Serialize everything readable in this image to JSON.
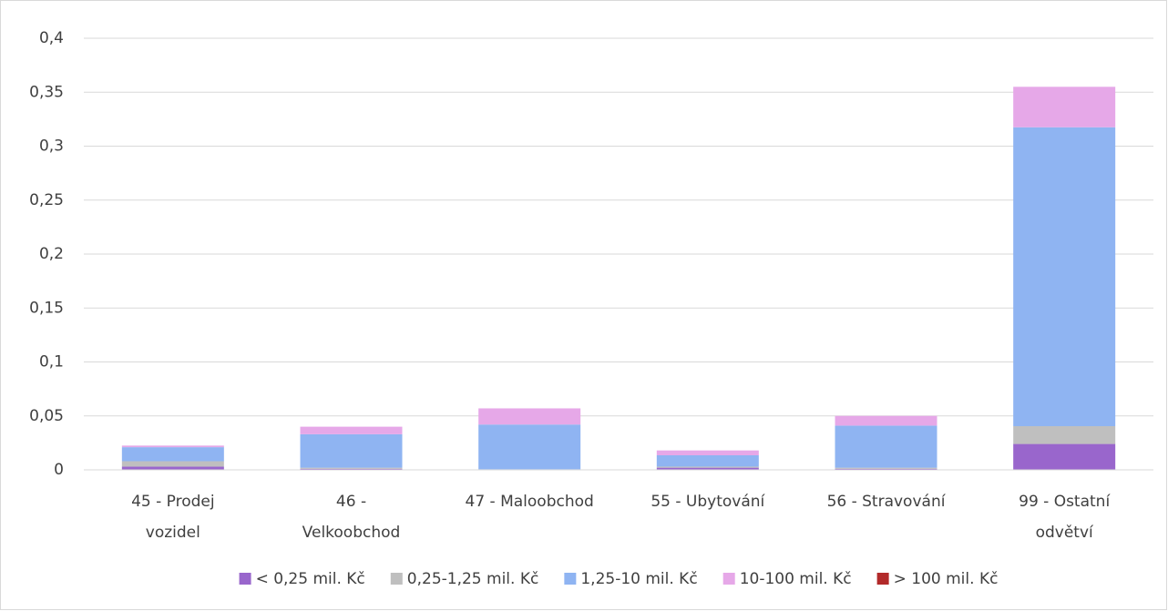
{
  "chart_data": {
    "type": "stacked-bar",
    "categories": [
      "45 - Prodej vozidel",
      "46 - Velkoobchod",
      "47 - Maloobchod",
      "55 - Ubytování",
      "56 - Stravování",
      "99 - Ostatní odvětví"
    ],
    "series": [
      {
        "name": "< 0,25 mil. Kč",
        "color": "#9966cc",
        "values": [
          0.003,
          0.001,
          0,
          0.002,
          0.001,
          0.024
        ]
      },
      {
        "name": "0,25-1,25 mil. Kč",
        "color": "#bfbfbf",
        "values": [
          0.005,
          0.001,
          0.0005,
          0.001,
          0.001,
          0.0165
        ]
      },
      {
        "name": "1,25-10 mil. Kč",
        "color": "#8fb4f2",
        "values": [
          0.013,
          0.031,
          0.0415,
          0.0105,
          0.039,
          0.277
        ]
      },
      {
        "name": "10-100 mil. Kč",
        "color": "#e6a8e8",
        "values": [
          0.0015,
          0.007,
          0.015,
          0.0045,
          0.009,
          0.0375
        ]
      },
      {
        "name": "> 100 mil. Kč",
        "color": "#b22a2a",
        "values": [
          0,
          0,
          0,
          0,
          0,
          0
        ]
      }
    ],
    "ylim": [
      0,
      0.4
    ],
    "yticks": [
      0,
      {
        "value": 0.05,
        "label": "0,05"
      },
      {
        "value": 0.1,
        "label": "0,1"
      },
      {
        "value": 0.15,
        "label": "0,15"
      },
      {
        "value": 0.2,
        "label": "0,2"
      },
      {
        "value": 0.25,
        "label": "0,25"
      },
      {
        "value": 0.3,
        "label": "0,3"
      },
      {
        "value": 0.35,
        "label": "0,35"
      },
      {
        "value": 0.4,
        "label": "0,4"
      }
    ],
    "grid": true,
    "legend": "bottom"
  }
}
